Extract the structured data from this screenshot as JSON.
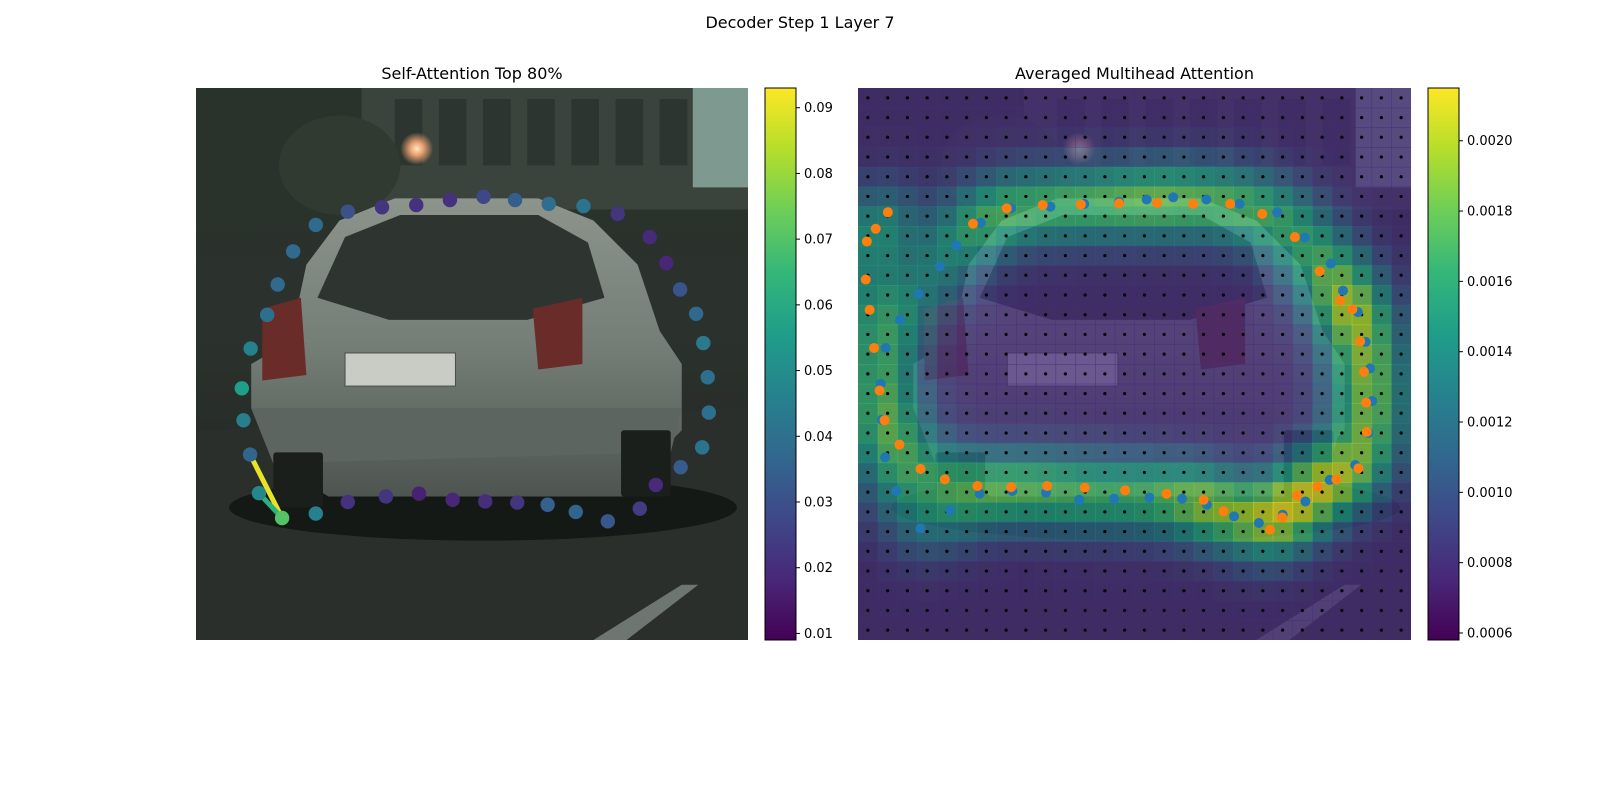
{
  "figure": {
    "title": "Decoder Step 1 Layer 7"
  },
  "colors": {
    "viridis": [
      "#440154",
      "#482878",
      "#3e4989",
      "#31688e",
      "#26828e",
      "#1f9e89",
      "#35b779",
      "#6ece58",
      "#b5de2b",
      "#fde725"
    ],
    "predicted_points": "#1f77b4",
    "ground_truth_points": "#ff7f0e",
    "grid_points": "#000000"
  },
  "chart_data": [
    {
      "type": "scatter",
      "title": "Self-Attention Top 80%",
      "background": "street scene photo with silver hatchback car (rear view)",
      "x_range": [
        0,
        100
      ],
      "y_range": [
        0,
        100
      ],
      "colorbar": {
        "min": 0.009,
        "max": 0.093,
        "ticks": [
          "0.01",
          "0.02",
          "0.03",
          "0.04",
          "0.05",
          "0.06",
          "0.07",
          "0.08",
          "0.09"
        ]
      },
      "points": [
        {
          "x": 21.7,
          "y": 24.8,
          "v": 0.038
        },
        {
          "x": 27.5,
          "y": 22.4,
          "v": 0.03
        },
        {
          "x": 33.7,
          "y": 21.6,
          "v": 0.022
        },
        {
          "x": 39.9,
          "y": 21.2,
          "v": 0.021
        },
        {
          "x": 46.0,
          "y": 20.3,
          "v": 0.021
        },
        {
          "x": 52.1,
          "y": 19.7,
          "v": 0.027
        },
        {
          "x": 57.8,
          "y": 20.3,
          "v": 0.034
        },
        {
          "x": 63.9,
          "y": 21.0,
          "v": 0.039
        },
        {
          "x": 70.2,
          "y": 21.4,
          "v": 0.041
        },
        {
          "x": 76.4,
          "y": 22.8,
          "v": 0.022
        },
        {
          "x": 82.2,
          "y": 27.0,
          "v": 0.019
        },
        {
          "x": 85.2,
          "y": 31.7,
          "v": 0.018
        },
        {
          "x": 87.7,
          "y": 36.5,
          "v": 0.031
        },
        {
          "x": 90.6,
          "y": 40.9,
          "v": 0.037
        },
        {
          "x": 91.9,
          "y": 46.2,
          "v": 0.043
        },
        {
          "x": 92.7,
          "y": 52.4,
          "v": 0.04
        },
        {
          "x": 92.9,
          "y": 58.8,
          "v": 0.04
        },
        {
          "x": 91.7,
          "y": 65.1,
          "v": 0.041
        },
        {
          "x": 87.8,
          "y": 68.7,
          "v": 0.033
        },
        {
          "x": 83.3,
          "y": 71.9,
          "v": 0.019
        },
        {
          "x": 80.4,
          "y": 76.2,
          "v": 0.024
        },
        {
          "x": 74.6,
          "y": 78.5,
          "v": 0.032
        },
        {
          "x": 68.8,
          "y": 76.8,
          "v": 0.036
        },
        {
          "x": 63.7,
          "y": 75.5,
          "v": 0.035
        },
        {
          "x": 58.2,
          "y": 75.1,
          "v": 0.022
        },
        {
          "x": 52.4,
          "y": 74.9,
          "v": 0.02
        },
        {
          "x": 46.5,
          "y": 74.6,
          "v": 0.018
        },
        {
          "x": 40.4,
          "y": 73.5,
          "v": 0.017
        },
        {
          "x": 34.4,
          "y": 74.0,
          "v": 0.022
        },
        {
          "x": 27.5,
          "y": 75.0,
          "v": 0.021
        },
        {
          "x": 21.7,
          "y": 77.1,
          "v": 0.046
        },
        {
          "x": 15.6,
          "y": 77.9,
          "v": 0.07
        },
        {
          "x": 11.4,
          "y": 73.4,
          "v": 0.048
        },
        {
          "x": 9.8,
          "y": 66.4,
          "v": 0.036
        },
        {
          "x": 8.6,
          "y": 60.2,
          "v": 0.045
        },
        {
          "x": 8.3,
          "y": 54.4,
          "v": 0.056
        },
        {
          "x": 9.9,
          "y": 47.2,
          "v": 0.046
        },
        {
          "x": 12.9,
          "y": 41.1,
          "v": 0.04
        },
        {
          "x": 14.8,
          "y": 35.6,
          "v": 0.038
        },
        {
          "x": 17.6,
          "y": 29.6,
          "v": 0.038
        }
      ],
      "edges": [
        {
          "from": 33,
          "to": 31,
          "v": 0.09
        },
        {
          "from": 32,
          "to": 31,
          "v": 0.062
        }
      ]
    },
    {
      "type": "heatmap",
      "title": "Averaged Multihead Attention",
      "background": "same street scene, dimmed under attention heatmap",
      "colorbar": {
        "min": 0.00058,
        "max": 0.00215,
        "ticks": [
          "0.0006",
          "0.0008",
          "0.0010",
          "0.0012",
          "0.0014",
          "0.0016",
          "0.0018",
          "0.0020"
        ]
      },
      "grid": {
        "cols": 28,
        "rows": 28,
        "dots": "black reference point on every cell"
      },
      "series": [
        {
          "name": "",
          "color": "#1f77b4",
          "points": [
            [
              22.2,
              24.4
            ],
            [
              27.7,
              21.8
            ],
            [
              34.8,
              21.5
            ],
            [
              40.9,
              21.0
            ],
            [
              47.2,
              20.6
            ],
            [
              52.2,
              20.2
            ],
            [
              57.0,
              19.8
            ],
            [
              63.0,
              20.2
            ],
            [
              69.0,
              21.0
            ],
            [
              75.8,
              22.5
            ],
            [
              80.8,
              27.1
            ],
            [
              85.5,
              31.8
            ],
            [
              87.7,
              36.7
            ],
            [
              90.4,
              40.6
            ],
            [
              91.8,
              46.0
            ],
            [
              92.6,
              50.8
            ],
            [
              93.0,
              56.7
            ],
            [
              92.3,
              62.5
            ],
            [
              89.9,
              68.3
            ],
            [
              85.3,
              71.0
            ],
            [
              80.9,
              74.9
            ],
            [
              76.8,
              77.3
            ],
            [
              72.5,
              78.8
            ],
            [
              68.0,
              77.6
            ],
            [
              63.1,
              75.5
            ],
            [
              58.6,
              74.4
            ],
            [
              52.7,
              74.2
            ],
            [
              46.3,
              74.4
            ],
            [
              40.0,
              74.6
            ],
            [
              34.0,
              73.3
            ],
            [
              27.9,
              73.0
            ],
            [
              22.0,
              73.5
            ],
            [
              16.7,
              76.5
            ],
            [
              11.3,
              79.8
            ],
            [
              6.9,
              73.0
            ],
            [
              4.9,
              66.9
            ],
            [
              4.3,
              60.1
            ],
            [
              4.1,
              53.6
            ],
            [
              5.0,
              47.1
            ],
            [
              7.6,
              42.0
            ],
            [
              11.0,
              37.3
            ],
            [
              14.8,
              32.3
            ],
            [
              17.8,
              28.5
            ]
          ]
        },
        {
          "name": "",
          "color": "#ff7f0e",
          "points": [
            [
              20.8,
              24.6
            ],
            [
              26.9,
              21.8
            ],
            [
              33.4,
              21.2
            ],
            [
              40.3,
              21.1
            ],
            [
              47.2,
              20.9
            ],
            [
              54.1,
              20.8
            ],
            [
              60.6,
              21.0
            ],
            [
              67.3,
              21.0
            ],
            [
              73.1,
              22.8
            ],
            [
              79.0,
              27.0
            ],
            [
              83.5,
              33.2
            ],
            [
              87.2,
              38.5
            ],
            [
              89.4,
              40.1
            ],
            [
              90.8,
              45.9
            ],
            [
              91.5,
              51.4
            ],
            [
              91.9,
              57.0
            ],
            [
              92.0,
              62.3
            ],
            [
              90.5,
              68.9
            ],
            [
              86.5,
              70.9
            ],
            [
              83.1,
              72.2
            ],
            [
              79.4,
              73.8
            ],
            [
              76.7,
              77.8
            ],
            [
              74.5,
              80.0
            ],
            [
              66.1,
              76.7
            ],
            [
              62.5,
              74.6
            ],
            [
              55.8,
              73.5
            ],
            [
              48.3,
              72.9
            ],
            [
              41.0,
              72.4
            ],
            [
              34.2,
              72.1
            ],
            [
              27.7,
              72.3
            ],
            [
              21.6,
              72.1
            ],
            [
              15.7,
              70.9
            ],
            [
              11.3,
              69.0
            ],
            [
              7.5,
              64.6
            ],
            [
              4.8,
              60.2
            ],
            [
              3.9,
              54.8
            ],
            [
              2.9,
              47.1
            ],
            [
              2.1,
              40.2
            ],
            [
              1.4,
              34.7
            ],
            [
              1.6,
              27.8
            ],
            [
              3.2,
              25.5
            ],
            [
              5.4,
              22.5
            ]
          ]
        }
      ]
    }
  ]
}
